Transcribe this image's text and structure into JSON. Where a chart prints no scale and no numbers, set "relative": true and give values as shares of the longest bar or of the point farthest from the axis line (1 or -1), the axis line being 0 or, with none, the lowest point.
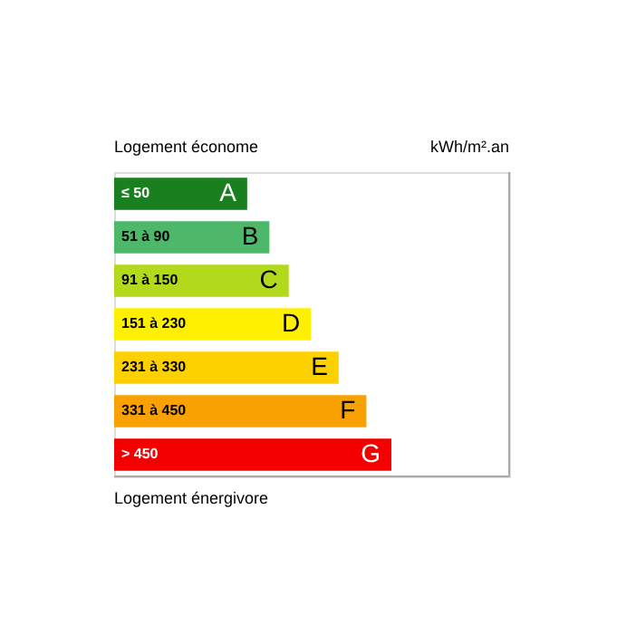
{
  "chart_data": {
    "type": "bar",
    "orientation": "horizontal",
    "relative": true,
    "title": "Logement économe",
    "categories": [
      "A",
      "B",
      "C",
      "D",
      "E",
      "F",
      "G"
    ],
    "values": [
      0.48,
      0.56,
      0.63,
      0.71,
      0.81,
      0.91,
      1
    ],
    "colors": [
      "#1a7f1f",
      "#4db86a",
      "#b3d91c",
      "#fff000",
      "#fdd000",
      "#f8a100",
      "#f40000"
    ],
    "annotations": [
      "kWh/m².an",
      "Logement énergivore",
      "≤ 50",
      "51 à 90",
      "91 à 150",
      "151 à 230",
      "231 à 330",
      "331 à 450",
      "> 450"
    ]
  }
}
